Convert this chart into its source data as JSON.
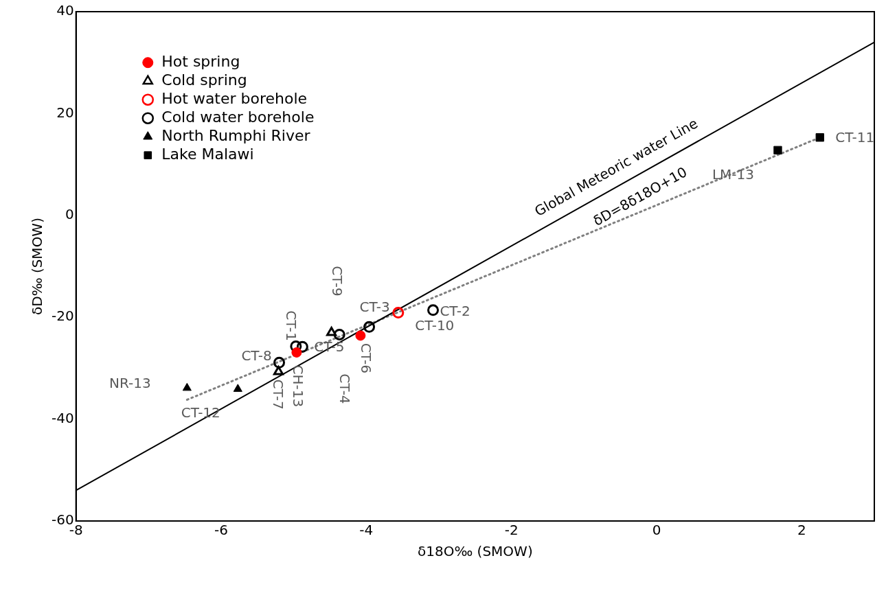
{
  "chart_data": {
    "type": "scatter",
    "xlabel": "δ18O‰ (SMOW)",
    "ylabel": "δD‰ (SMOW)",
    "xlim": [
      -8,
      3
    ],
    "xticks": [
      -8,
      -6,
      -4,
      -2,
      0,
      2
    ],
    "ylim": [
      -60,
      40
    ],
    "yticks": [
      -60,
      -40,
      -20,
      0,
      20,
      40
    ],
    "grid": false,
    "legend": "top left",
    "series": [
      {
        "name": "Hot spring",
        "color": "#ff0000",
        "marker": "circle",
        "x": [
          -4.96,
          -4.08
        ],
        "values": [
          -26.9,
          -23.6
        ]
      },
      {
        "name": "Cold spring",
        "color": "#000000",
        "marker": "triangle-open",
        "x": [
          -5.21,
          -4.48
        ],
        "values": [
          -30.7,
          -23.0
        ]
      },
      {
        "name": "Hot water borehole",
        "color": "#ff0000",
        "marker": "circle-open",
        "x": [
          -3.56
        ],
        "values": [
          -19.1
        ]
      },
      {
        "name": "Cold water borehole",
        "color": "#000000",
        "marker": "circle-open",
        "x": [
          -4.97,
          -4.88,
          -5.2,
          -4.37,
          -3.96,
          -3.08
        ],
        "values": [
          -25.7,
          -25.8,
          -28.9,
          -23.4,
          -21.9,
          -18.6
        ]
      },
      {
        "name": "North Rumphi River",
        "color": "#000000",
        "marker": "triangle",
        "x": [
          -6.47,
          -5.77
        ],
        "values": [
          -33.9,
          -34.1
        ]
      },
      {
        "name": "Lake Malawi",
        "color": "#000000",
        "marker": "square",
        "x": [
          1.67,
          2.25
        ],
        "values": [
          12.8,
          15.3
        ]
      },
      {
        "type": "line",
        "color": "#000000",
        "marker": "none",
        "line_style": "solid",
        "x": [
          -8,
          3
        ],
        "values": [
          -54,
          34
        ]
      },
      {
        "type": "line",
        "color": "#808080",
        "marker": "none",
        "line_style": "dotted",
        "x": [
          -6.47,
          2.25
        ],
        "values": [
          -36.2,
          15.3
        ]
      }
    ],
    "annotations": [
      {
        "text": "NR-13",
        "x": -6.47,
        "y": -33.9
      },
      {
        "text": "CT-12",
        "x": -5.77,
        "y": -34.1
      },
      {
        "text": "CT-8",
        "x": -5.2,
        "y": -28.9
      },
      {
        "text": "CT-7",
        "x": -5.21,
        "y": -30.7
      },
      {
        "text": "CH-13",
        "x": -4.96,
        "y": -26.9
      },
      {
        "text": "CT-1",
        "x": -4.97,
        "y": -25.7
      },
      {
        "text": "CT-5",
        "x": -4.88,
        "y": -25.8
      },
      {
        "text": "CT-9",
        "x": -4.48,
        "y": -23.0
      },
      {
        "text": "CT-4",
        "x": -4.37,
        "y": -23.4
      },
      {
        "text": "CT-6",
        "x": -4.08,
        "y": -23.6
      },
      {
        "text": "CT-3",
        "x": -3.96,
        "y": -21.9
      },
      {
        "text": "CT-10",
        "x": -3.56,
        "y": -19.1
      },
      {
        "text": "CT-2",
        "x": -3.08,
        "y": -18.6
      },
      {
        "text": "LM-13",
        "x": 1.67,
        "y": 12.8
      },
      {
        "text": "CT-11",
        "x": 2.25,
        "y": 15.3
      },
      {
        "text": "Global Meteoric water Line",
        "x": -0.55,
        "y": 5.6
      },
      {
        "text": "δD=8δ18O+10",
        "x": -0.22,
        "y": 8.24
      }
    ]
  }
}
